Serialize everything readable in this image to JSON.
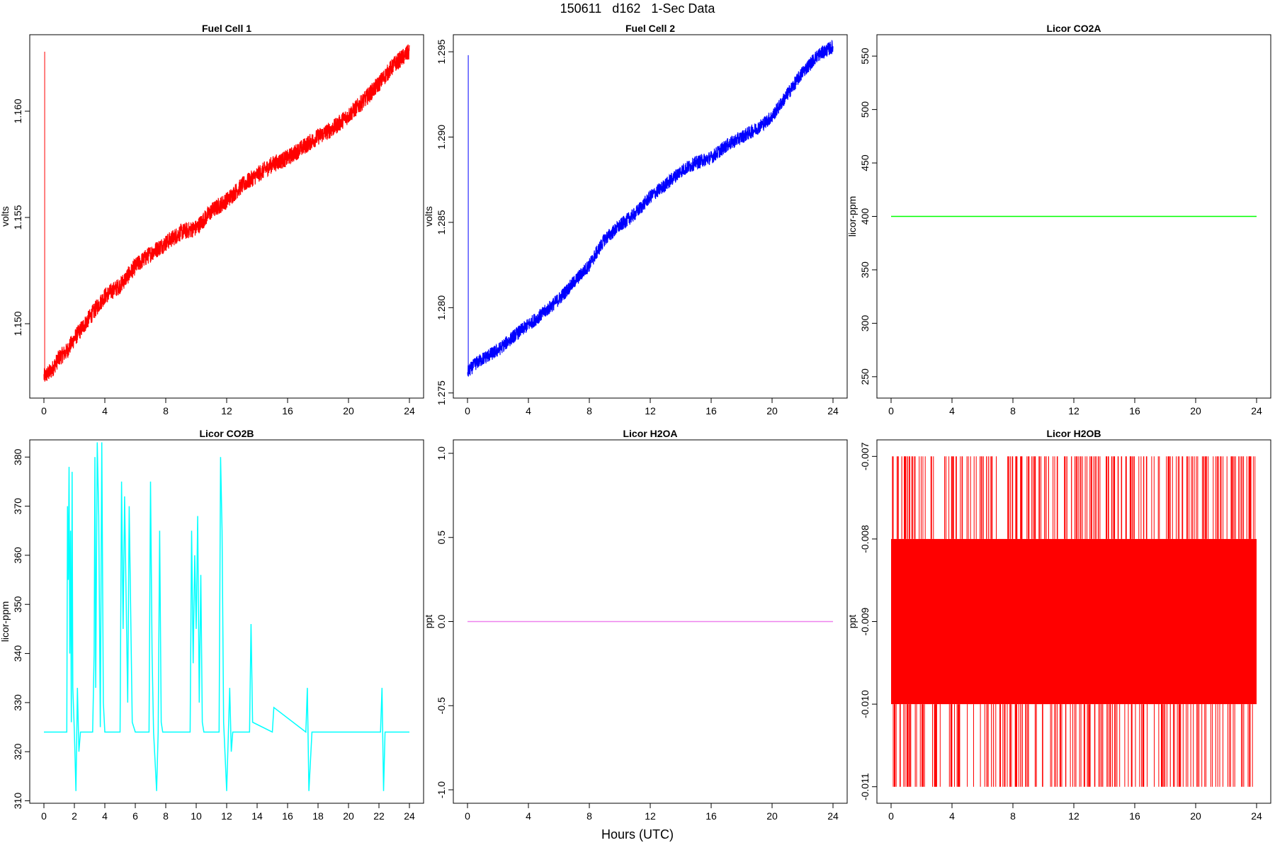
{
  "title": "150611   d162   1-Sec Data",
  "xlabel": "Hours (UTC)",
  "chart_data": [
    {
      "type": "line",
      "title": "Fuel Cell 1",
      "ylabel": "volts",
      "color": "#ff0000",
      "xlim": [
        0,
        24
      ],
      "ylim": [
        1.1465,
        1.1636
      ],
      "xticks": [
        0,
        4,
        8,
        12,
        16,
        20,
        24
      ],
      "yticks": [
        1.15,
        1.155,
        1.16
      ],
      "ytick_labels": [
        "1.150",
        "1.155",
        "1.160"
      ],
      "x": [
        0,
        0.5,
        1,
        1.5,
        2,
        3,
        4,
        5,
        6,
        7,
        8,
        9,
        10,
        11,
        12,
        13,
        14,
        15,
        16,
        17,
        18,
        19,
        20,
        21,
        22,
        23,
        24
      ],
      "y": [
        1.1475,
        1.1478,
        1.1484,
        1.1487,
        1.1493,
        1.1503,
        1.1513,
        1.1518,
        1.1527,
        1.1533,
        1.1538,
        1.1543,
        1.1545,
        1.1553,
        1.1558,
        1.1565,
        1.157,
        1.1575,
        1.1578,
        1.1583,
        1.1588,
        1.1592,
        1.1598,
        1.1605,
        1.1613,
        1.1622,
        1.1628
      ],
      "noise": 0.0004,
      "spike": {
        "x": 0.05,
        "from": 1.1475,
        "to": 1.1628
      }
    },
    {
      "type": "line",
      "title": "Fuel Cell 2",
      "ylabel": "volts",
      "color": "#0000ff",
      "xlim": [
        0,
        24
      ],
      "ylim": [
        1.2747,
        1.296
      ],
      "xticks": [
        0,
        4,
        8,
        12,
        16,
        20,
        24
      ],
      "yticks": [
        1.275,
        1.28,
        1.285,
        1.29,
        1.295
      ],
      "ytick_labels": [
        "1.275",
        "1.280",
        "1.285",
        "1.290",
        "1.295"
      ],
      "x": [
        0,
        0.5,
        1,
        2,
        3,
        4,
        5,
        6,
        7,
        8,
        9,
        10,
        11,
        12,
        13,
        14,
        15,
        16,
        17,
        18,
        19,
        20,
        21,
        22,
        23,
        24
      ],
      "y": [
        1.2762,
        1.2767,
        1.277,
        1.2775,
        1.2783,
        1.279,
        1.2797,
        1.2805,
        1.2815,
        1.2825,
        1.284,
        1.2848,
        1.2855,
        1.2865,
        1.2872,
        1.288,
        1.2885,
        1.2888,
        1.2895,
        1.29,
        1.2905,
        1.2912,
        1.2925,
        1.2938,
        1.2948,
        1.2953
      ],
      "noise": 0.0004,
      "spike": {
        "x": 0.05,
        "from": 1.2762,
        "to": 1.2948
      }
    },
    {
      "type": "line",
      "title": "Licor CO2A",
      "ylabel": "licor-ppm",
      "color": "#00ff00",
      "xlim": [
        0,
        24
      ],
      "ylim": [
        230,
        570
      ],
      "xticks": [
        0,
        4,
        8,
        12,
        16,
        20,
        24
      ],
      "yticks": [
        250,
        300,
        350,
        400,
        450,
        500,
        550
      ],
      "ytick_labels": [
        "250",
        "300",
        "350",
        "400",
        "450",
        "500",
        "550"
      ],
      "x": [
        0,
        24
      ],
      "y": [
        400,
        400
      ]
    },
    {
      "type": "line",
      "title": "Licor CO2B",
      "ylabel": "licor-ppm",
      "color": "#00ffff",
      "xlim": [
        0,
        24
      ],
      "ylim": [
        309.5,
        383.5
      ],
      "xticks": [
        0,
        4,
        8,
        12,
        16,
        20,
        24
      ],
      "xtick_labels": [
        "0",
        "2",
        "4",
        "6",
        "8",
        "10",
        "12",
        "14",
        "16",
        "18",
        "20",
        "22",
        "24"
      ],
      "xtick_values": [
        0,
        2,
        4,
        6,
        8,
        10,
        12,
        14,
        16,
        18,
        20,
        22,
        24
      ],
      "yticks": [
        310,
        320,
        330,
        340,
        350,
        360,
        370,
        380
      ],
      "ytick_labels": [
        "310",
        "320",
        "330",
        "340",
        "350",
        "360",
        "370",
        "380"
      ],
      "x": [
        0,
        1.5,
        1.55,
        1.6,
        1.65,
        1.7,
        1.75,
        1.8,
        1.85,
        1.9,
        2.0,
        2.1,
        2.2,
        2.3,
        2.4,
        2.5,
        3.2,
        3.3,
        3.35,
        3.4,
        3.5,
        3.6,
        3.7,
        3.8,
        3.9,
        4.0,
        4.1,
        4.2,
        5.0,
        5.1,
        5.2,
        5.3,
        5.5,
        5.6,
        5.8,
        6.0,
        6.2,
        6.9,
        7.0,
        7.1,
        7.2,
        7.4,
        7.5,
        7.6,
        7.7,
        7.8,
        9.6,
        9.7,
        9.8,
        9.9,
        10.0,
        10.1,
        10.2,
        10.3,
        10.4,
        10.5,
        11.5,
        11.6,
        11.7,
        11.8,
        12.0,
        12.2,
        12.3,
        12.4,
        12.6,
        13.5,
        13.6,
        13.7,
        15.0,
        15.1,
        17.2,
        17.3,
        17.4,
        17.6,
        22.1,
        22.2,
        22.3,
        22.4,
        22.6,
        24
      ],
      "y": [
        324,
        324,
        370,
        355,
        378,
        340,
        365,
        326,
        377,
        333,
        324,
        312,
        333,
        320,
        324,
        324,
        324,
        340,
        380,
        333,
        383,
        368,
        325,
        383,
        330,
        324,
        324,
        324,
        324,
        375,
        345,
        372,
        330,
        370,
        326,
        324,
        324,
        324,
        375,
        340,
        324,
        312,
        324,
        365,
        326,
        324,
        324,
        365,
        338,
        360,
        345,
        368,
        330,
        356,
        326,
        324,
        324,
        380,
        365,
        326,
        312,
        333,
        320,
        324,
        324,
        324,
        346,
        326,
        324,
        329,
        324,
        333,
        312,
        324,
        324,
        333,
        312,
        324,
        324,
        324
      ]
    },
    {
      "type": "line",
      "title": "Licor H2OA",
      "ylabel": "ppt",
      "color": "#ee82ee",
      "xlim": [
        0,
        24
      ],
      "ylim": [
        -1.08,
        1.08
      ],
      "xticks": [
        0,
        4,
        8,
        12,
        16,
        20,
        24
      ],
      "yticks": [
        -1.0,
        -0.5,
        0.0,
        0.5,
        1.0
      ],
      "ytick_labels": [
        "-1.0",
        "-0.5",
        "0.0",
        "0.5",
        "1.0"
      ],
      "x": [
        0,
        24
      ],
      "y": [
        0,
        0
      ]
    },
    {
      "type": "line",
      "title": "Licor H2OB",
      "ylabel": "ppt",
      "color": "#ff0000",
      "xlim": [
        0,
        24
      ],
      "ylim": [
        -0.0112,
        -0.0068
      ],
      "xticks": [
        0,
        4,
        8,
        12,
        16,
        20,
        24
      ],
      "yticks": [
        -0.011,
        -0.01,
        -0.009,
        -0.008,
        -0.007
      ],
      "ytick_labels": [
        "-0.011",
        "-0.010",
        "-0.009",
        "-0.008",
        "-0.007"
      ],
      "band": [
        -0.01,
        -0.008
      ],
      "levels": [
        -0.011,
        -0.007
      ],
      "x": [
        0,
        24
      ],
      "y": [
        -0.009,
        -0.009
      ]
    }
  ]
}
